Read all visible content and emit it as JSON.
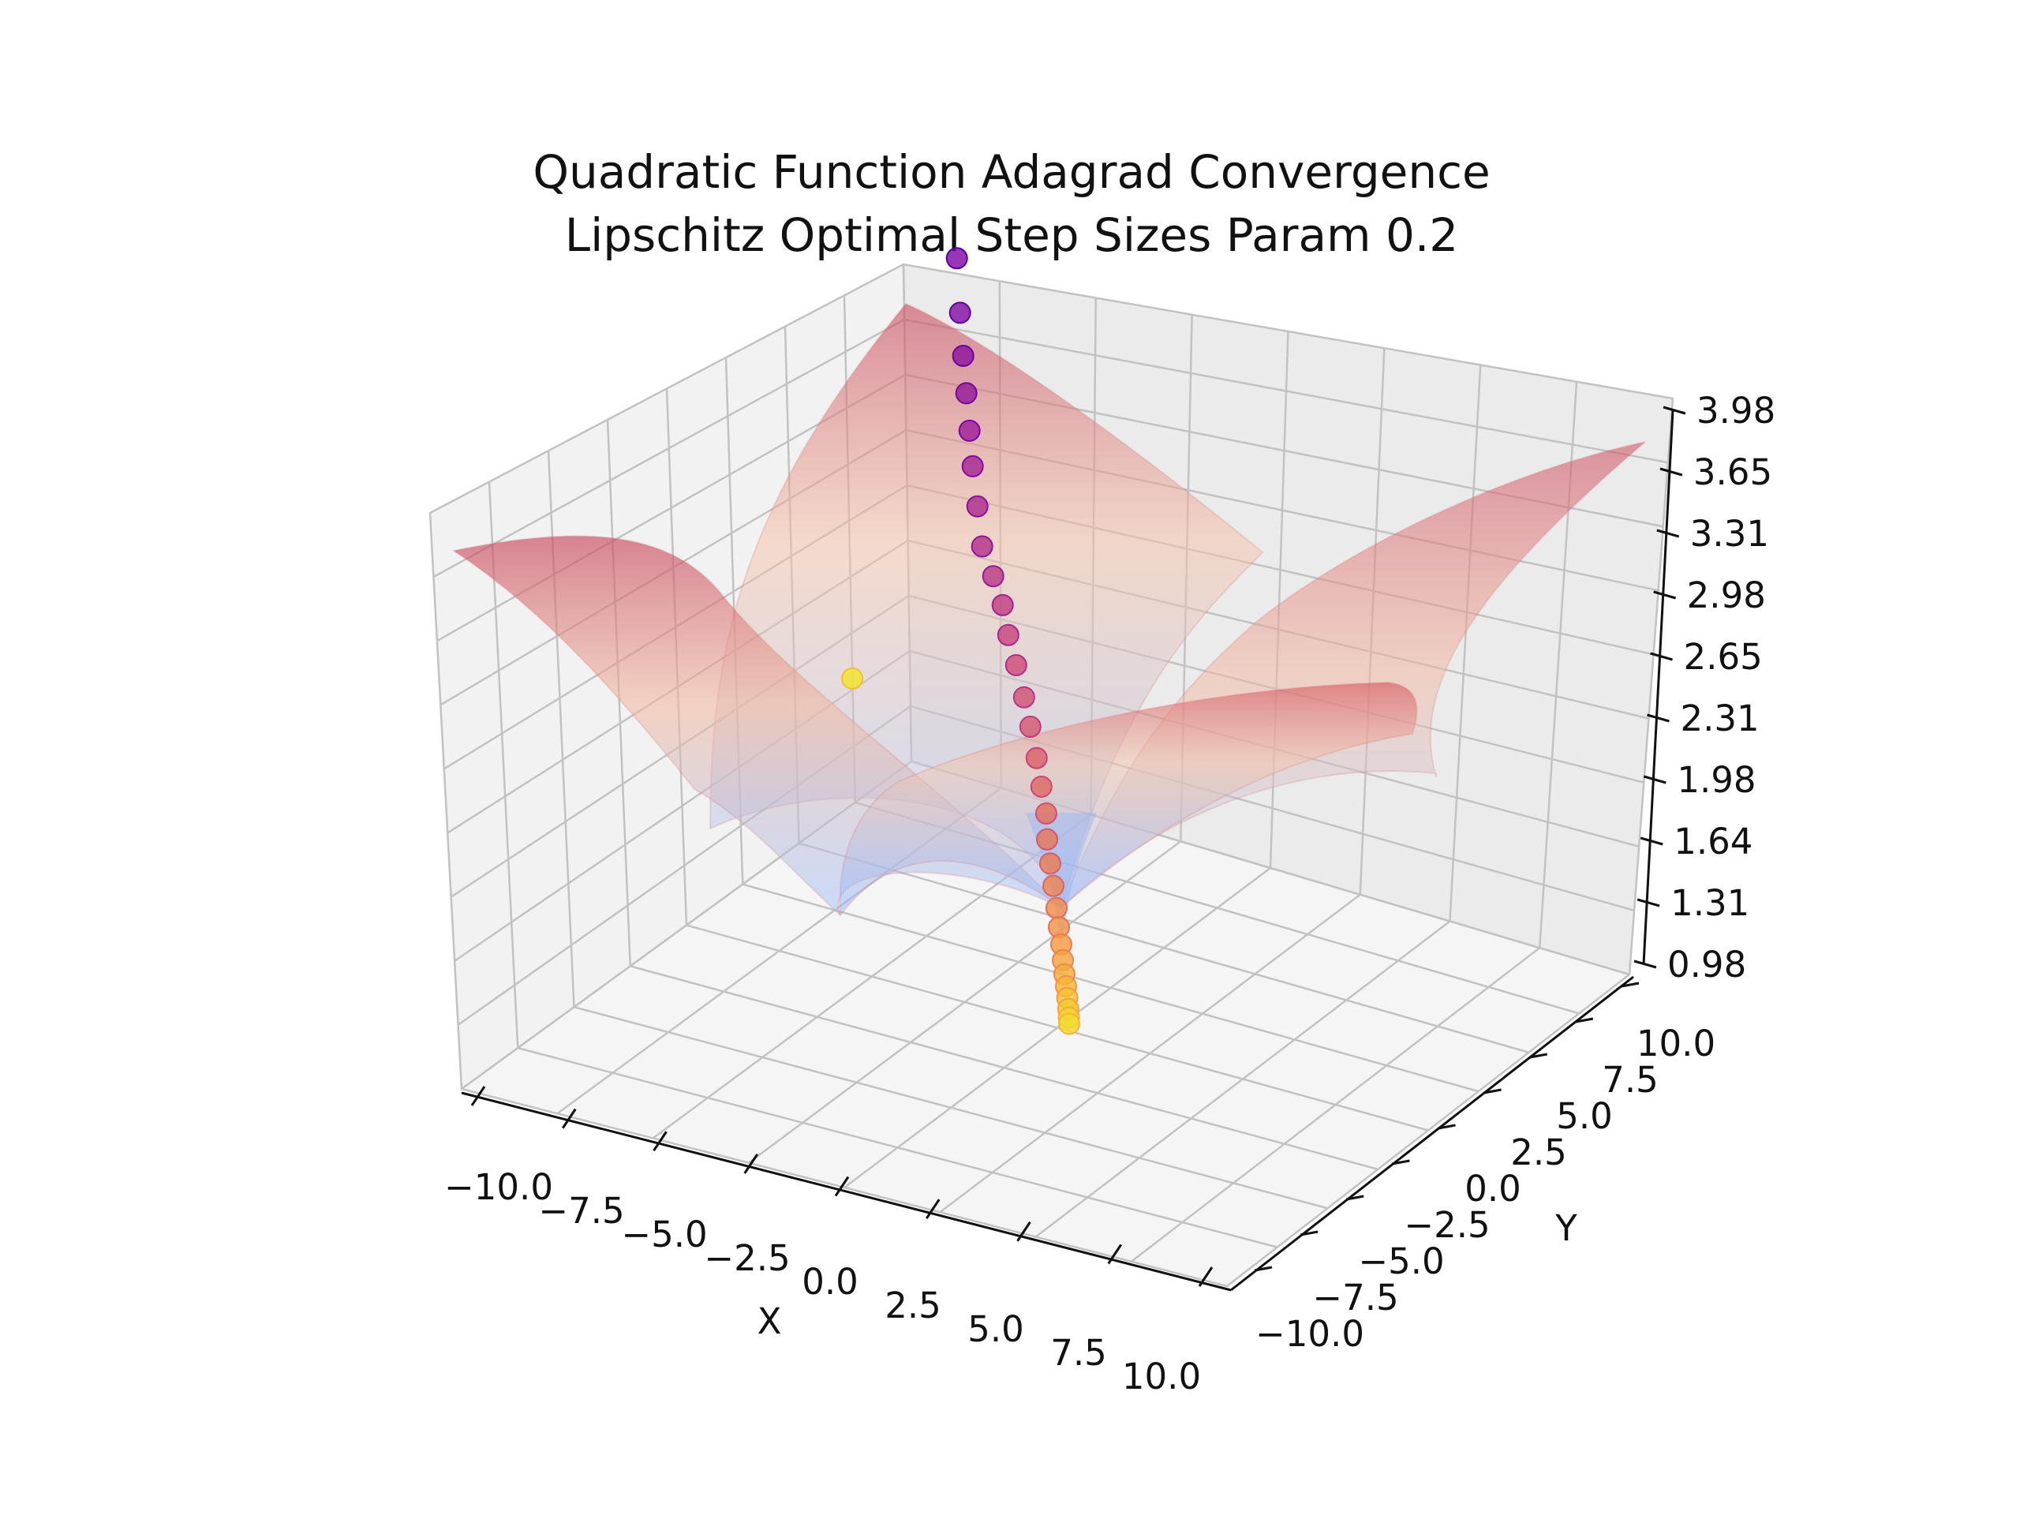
{
  "chart_data": {
    "type": "surface3d",
    "title_line1": "Quadratic Function Adagrad Convergence",
    "title_line2": "Lipschitz Optimal Step Sizes Param 0.2",
    "xlabel": "X",
    "ylabel": "Y",
    "zlabel": "",
    "x_ticks": [
      "−10.0",
      "−7.5",
      "−5.0",
      "−2.5",
      "0.0",
      "2.5",
      "5.0",
      "7.5",
      "10.0"
    ],
    "y_ticks": [
      "−10.0",
      "−7.5",
      "−5.0",
      "−2.5",
      "0.0",
      "2.5",
      "5.0",
      "7.5",
      "10.0"
    ],
    "z_ticks": [
      "0.98",
      "1.31",
      "1.64",
      "1.98",
      "2.31",
      "2.65",
      "2.98",
      "3.31",
      "3.65",
      "3.98"
    ],
    "xlim": [
      -10,
      10
    ],
    "ylim": [
      -10,
      10
    ],
    "zlim": [
      0.98,
      3.98
    ],
    "surface": {
      "function": "log10(x^2 + y^2 + 10)",
      "colormap": "coolwarm",
      "alpha": 0.5
    },
    "trajectory": {
      "description": "Adagrad iterates descending toward minimum at (0, 0)",
      "colormap": "plasma",
      "points": [
        {
          "x": -7.4,
          "y": 7.6,
          "z": 3.98
        },
        {
          "x": -7.2,
          "y": 7.4,
          "z": 3.72
        },
        {
          "x": -7.0,
          "y": 7.2,
          "z": 3.52
        },
        {
          "x": -6.8,
          "y": 7.0,
          "z": 3.35
        },
        {
          "x": -6.6,
          "y": 6.8,
          "z": 3.18
        },
        {
          "x": -6.4,
          "y": 6.6,
          "z": 3.02
        },
        {
          "x": -6.1,
          "y": 6.3,
          "z": 2.85
        },
        {
          "x": -5.8,
          "y": 6.0,
          "z": 2.68
        },
        {
          "x": -5.1,
          "y": 5.3,
          "z": 2.62
        },
        {
          "x": -4.5,
          "y": 4.7,
          "z": 2.55
        },
        {
          "x": -4.0,
          "y": 4.1,
          "z": 2.47
        },
        {
          "x": -3.5,
          "y": 3.6,
          "z": 2.38
        },
        {
          "x": -3.0,
          "y": 3.1,
          "z": 2.28
        },
        {
          "x": -2.6,
          "y": 2.7,
          "z": 2.18
        },
        {
          "x": -2.2,
          "y": 2.3,
          "z": 2.07
        },
        {
          "x": -1.9,
          "y": 2.0,
          "z": 1.96
        },
        {
          "x": -1.6,
          "y": 1.7,
          "z": 1.86
        },
        {
          "x": -1.4,
          "y": 1.4,
          "z": 1.76
        },
        {
          "x": -1.2,
          "y": 1.2,
          "z": 1.66
        },
        {
          "x": -1.0,
          "y": 1.0,
          "z": 1.57
        },
        {
          "x": -0.8,
          "y": 0.8,
          "z": 1.48
        },
        {
          "x": -0.65,
          "y": 0.65,
          "z": 1.4
        },
        {
          "x": -0.5,
          "y": 0.5,
          "z": 1.33
        },
        {
          "x": -0.4,
          "y": 0.4,
          "z": 1.26
        },
        {
          "x": -0.3,
          "y": 0.3,
          "z": 1.2
        },
        {
          "x": -0.2,
          "y": 0.2,
          "z": 1.15
        },
        {
          "x": -0.12,
          "y": 0.12,
          "z": 1.1
        },
        {
          "x": -0.06,
          "y": 0.06,
          "z": 1.05
        },
        {
          "x": -0.02,
          "y": 0.02,
          "z": 1.01
        },
        {
          "x": 0.0,
          "y": 0.0,
          "z": 0.98
        },
        {
          "x": -3.2,
          "y": -4.2,
          "z": 3.0
        }
      ]
    },
    "grid": true
  }
}
